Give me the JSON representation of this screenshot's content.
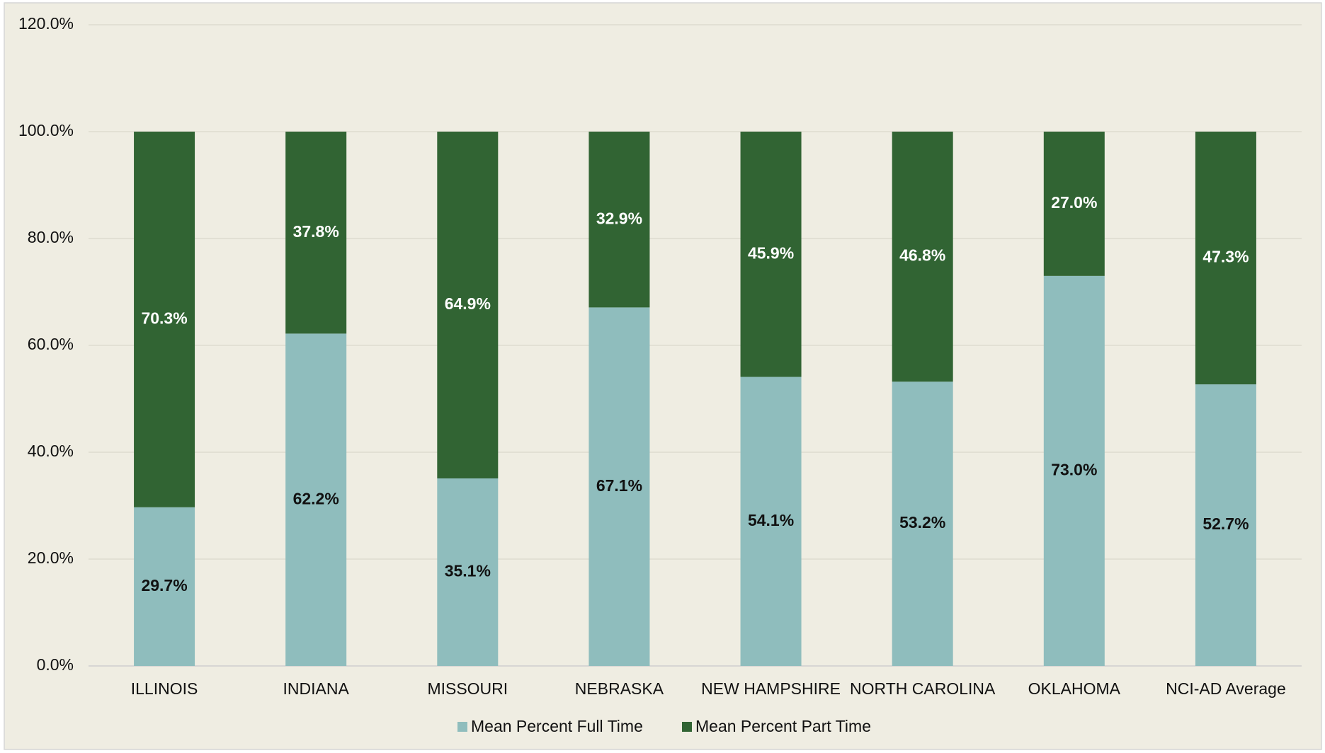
{
  "chart_data": {
    "type": "stacked_bar",
    "categories": [
      "ILLINOIS",
      "INDIANA",
      "MISSOURI",
      "NEBRASKA",
      "NEW HAMPSHIRE",
      "NORTH CAROLINA",
      "OKLAHOMA",
      "NCI-AD Average"
    ],
    "series": [
      {
        "name": "Mean Percent Full Time",
        "color": "#8fbdbd",
        "label_color": "#111111",
        "values": [
          29.7,
          62.2,
          35.1,
          67.1,
          54.1,
          53.2,
          73.0,
          52.7
        ],
        "value_labels": [
          "29.7%",
          "62.2%",
          "35.1%",
          "67.1%",
          "54.1%",
          "53.2%",
          "73.0%",
          "52.7%"
        ]
      },
      {
        "name": "Mean Percent Part Time",
        "color": "#316433",
        "label_color": "#ffffff",
        "values": [
          70.3,
          37.8,
          64.9,
          32.9,
          45.9,
          46.8,
          27.0,
          47.3
        ],
        "value_labels": [
          "70.3%",
          "37.8%",
          "64.9%",
          "32.9%",
          "45.9%",
          "46.8%",
          "27.0%",
          "47.3%"
        ]
      }
    ],
    "ylim": [
      0,
      120
    ],
    "yticks": [
      {
        "value": 0,
        "label": "0.0%"
      },
      {
        "value": 20,
        "label": "20.0%"
      },
      {
        "value": 40,
        "label": "40.0%"
      },
      {
        "value": 60,
        "label": "60.0%"
      },
      {
        "value": 80,
        "label": "80.0%"
      },
      {
        "value": 100,
        "label": "100.0%"
      },
      {
        "value": 120,
        "label": "120.0%"
      }
    ],
    "grid": true,
    "legend": "bottom"
  }
}
